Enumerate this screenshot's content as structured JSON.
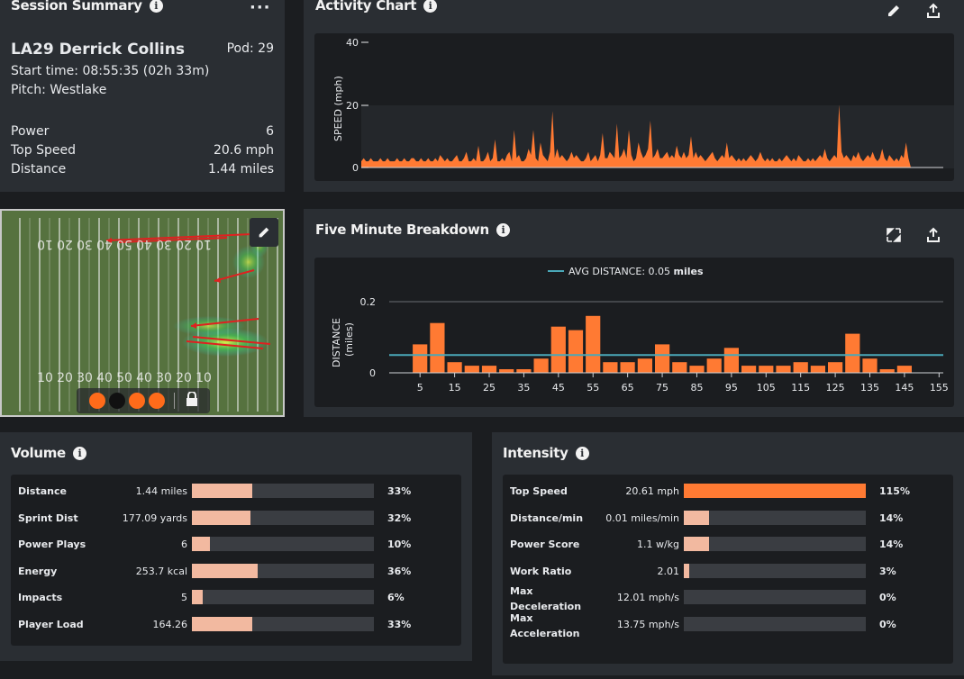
{
  "session": {
    "title": "Session Summary",
    "player": "LA29 Derrick Collins",
    "pod": "Pod: 29",
    "start_time": "Start time: 08:55:35 (02h 33m)",
    "pitch": "Pitch: Westlake",
    "stats": [
      {
        "label": "Power",
        "value": "6"
      },
      {
        "label": "Top Speed",
        "value": "20.6 mph"
      },
      {
        "label": "Distance",
        "value": "1.44 miles"
      }
    ]
  },
  "activity": {
    "title": "Activity Chart",
    "ylabel": "SPEED (mph)",
    "yticks": [
      "40",
      "20",
      "0"
    ]
  },
  "five_min": {
    "title": "Five Minute Breakdown",
    "legend_label": "AVG DISTANCE: 0.05",
    "legend_unit": "miles"
  },
  "chart_data": [
    {
      "type": "area",
      "title": "Activity Chart",
      "ylabel": "SPEED (mph)",
      "ylim": [
        0,
        40
      ],
      "yticks": [
        0,
        20,
        40
      ],
      "values": [
        2,
        3,
        2,
        2,
        3,
        2,
        2,
        2,
        3,
        2,
        2,
        3,
        2,
        2,
        2,
        3,
        2,
        2,
        3,
        2,
        2,
        3,
        3,
        2,
        2,
        3,
        2,
        2,
        3,
        2,
        2,
        3,
        2,
        4,
        3,
        2,
        3,
        2,
        2,
        3,
        4,
        2,
        2,
        3,
        5,
        2,
        2,
        3,
        2,
        7,
        2,
        2,
        3,
        5,
        2,
        3,
        9,
        2,
        2,
        3,
        2,
        4,
        5,
        2,
        12,
        3,
        4,
        2,
        2,
        3,
        6,
        4,
        12,
        3,
        2,
        8,
        4,
        3,
        2,
        5,
        18,
        3,
        6,
        3,
        4,
        3,
        2,
        3,
        5,
        3,
        4,
        3,
        2,
        2,
        3,
        5,
        2,
        3,
        4,
        2,
        4,
        11,
        3,
        3,
        5,
        4,
        3,
        14,
        3,
        4,
        6,
        3,
        12,
        4,
        2,
        3,
        8,
        5,
        3,
        4,
        6,
        15,
        3,
        4,
        6,
        3,
        3,
        4,
        5,
        3,
        4,
        3,
        7,
        4,
        3,
        5,
        3,
        4,
        10,
        3,
        5,
        3,
        4,
        3,
        2,
        3,
        4,
        5,
        3,
        2,
        3,
        4,
        3,
        8,
        3,
        4,
        3,
        2,
        3,
        2,
        3,
        2,
        3,
        4,
        3,
        2,
        3,
        5,
        3,
        2,
        3,
        2,
        3,
        2,
        2,
        3,
        2,
        3,
        4,
        3,
        2,
        3,
        2,
        4,
        3,
        2,
        2,
        3,
        2,
        3,
        2,
        3,
        4,
        3,
        6,
        3,
        2,
        3,
        4,
        3,
        20,
        5,
        3,
        4,
        3,
        2,
        4,
        3,
        5,
        3,
        2,
        3,
        4,
        3,
        5,
        3,
        2,
        3,
        6,
        3,
        2,
        4,
        3,
        2,
        3,
        2,
        4,
        3,
        8,
        3,
        0
      ]
    },
    {
      "type": "bar",
      "title": "Five Minute Breakdown",
      "ylabel": "DISTANCE (miles)",
      "ylim": [
        0,
        0.2
      ],
      "yticks": [
        "0",
        "0.2"
      ],
      "x": [
        5,
        10,
        15,
        20,
        25,
        30,
        35,
        40,
        45,
        50,
        55,
        60,
        65,
        70,
        75,
        80,
        85,
        90,
        95,
        100,
        105,
        110,
        115,
        120,
        125,
        130,
        135,
        140,
        145
      ],
      "values": [
        0.08,
        0.14,
        0.03,
        0.02,
        0.02,
        0.01,
        0.01,
        0.04,
        0.13,
        0.12,
        0.16,
        0.03,
        0.03,
        0.04,
        0.08,
        0.03,
        0.02,
        0.04,
        0.07,
        0.02,
        0.02,
        0.02,
        0.03,
        0.02,
        0.03,
        0.11,
        0.04,
        0.01,
        0.02
      ],
      "xticks": [
        "5",
        "15",
        "25",
        "35",
        "45",
        "55",
        "65",
        "75",
        "85",
        "95",
        "105",
        "115",
        "125",
        "135",
        "145",
        "155"
      ],
      "avg_line": 0.05
    }
  ],
  "field": {
    "yard_labels_top": [
      "10",
      "20",
      "30",
      "40",
      "50",
      "40",
      "30",
      "20",
      "10"
    ],
    "yard_labels_bottom": [
      "10",
      "20",
      "30",
      "40",
      "50",
      "40",
      "30",
      "20",
      "10"
    ],
    "dots": [
      "#ff6b1a",
      "#111111",
      "#ff6b1a",
      "#ff6b1a"
    ]
  },
  "volume": {
    "title": "Volume",
    "rows": [
      {
        "label": "Distance",
        "value": "1.44 miles",
        "pct": "33%",
        "frac": 0.33
      },
      {
        "label": "Sprint Dist",
        "value": "177.09 yards",
        "pct": "32%",
        "frac": 0.32
      },
      {
        "label": "Power Plays",
        "value": "6",
        "pct": "10%",
        "frac": 0.1
      },
      {
        "label": "Energy",
        "value": "253.7 kcal",
        "pct": "36%",
        "frac": 0.36
      },
      {
        "label": "Impacts",
        "value": "5",
        "pct": "6%",
        "frac": 0.06
      },
      {
        "label": "Player Load",
        "value": "164.26",
        "pct": "33%",
        "frac": 0.33
      }
    ]
  },
  "intensity": {
    "title": "Intensity",
    "rows": [
      {
        "label": "Top Speed",
        "value": "20.61 mph",
        "pct": "115%",
        "frac": 1.0,
        "highlight": true
      },
      {
        "label": "Distance/min",
        "value": "0.01 miles/min",
        "pct": "14%",
        "frac": 0.14
      },
      {
        "label": "Power Score",
        "value": "1.1 w/kg",
        "pct": "14%",
        "frac": 0.14
      },
      {
        "label": "Work Ratio",
        "value": "2.01",
        "pct": "3%",
        "frac": 0.03
      },
      {
        "label": "Max Deceleration",
        "label1": "Max",
        "label2": "Deceleration",
        "value": "12.01 mph/s",
        "pct": "0%",
        "frac": 0
      },
      {
        "label": "Max Acceleration",
        "label1": "Max",
        "label2": "Acceleration",
        "value": "13.75 mph/s",
        "pct": "0%",
        "frac": 0
      }
    ]
  },
  "colors": {
    "accent": "#ff7a33",
    "bar_light": "#f2b9a0",
    "avg_line": "#4aa8b8"
  }
}
